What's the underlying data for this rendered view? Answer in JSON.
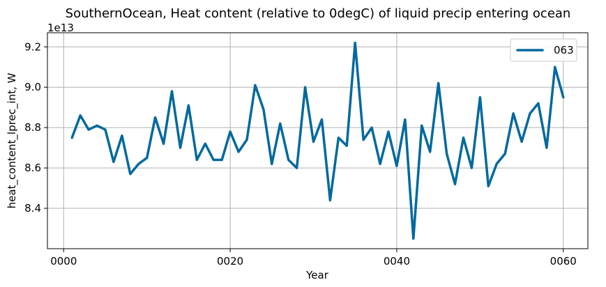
{
  "chart_data": {
    "type": "line",
    "title": "SouthernOcean, Heat content (relative to 0degC) of liquid precip entering ocean",
    "xlabel": "Year",
    "ylabel": "heat_content_lprec_int, W",
    "y_offset_label": "1e13",
    "xlim": [
      -1.95,
      62.95
    ],
    "ylim": [
      8.2,
      9.27
    ],
    "x_ticks": [
      0,
      20,
      40,
      60
    ],
    "x_tick_labels": [
      "0000",
      "0020",
      "0040",
      "0060"
    ],
    "y_ticks": [
      8.4,
      8.6,
      8.8,
      9.0,
      9.2
    ],
    "y_tick_labels": [
      "8.4",
      "8.6",
      "8.8",
      "9.0",
      "9.2"
    ],
    "grid": true,
    "legend_position": "top-right",
    "series": [
      {
        "name": "063",
        "color": "#00699e",
        "x": [
          1,
          2,
          3,
          4,
          5,
          6,
          7,
          8,
          9,
          10,
          11,
          12,
          13,
          14,
          15,
          16,
          17,
          18,
          19,
          20,
          21,
          22,
          23,
          24,
          25,
          26,
          27,
          28,
          29,
          30,
          31,
          32,
          33,
          34,
          35,
          36,
          37,
          38,
          39,
          40,
          41,
          42,
          43,
          44,
          45,
          46,
          47,
          48,
          49,
          50,
          51,
          52,
          53,
          54,
          55,
          56,
          57,
          58,
          59,
          60
        ],
        "values": [
          8.75,
          8.86,
          8.79,
          8.81,
          8.79,
          8.63,
          8.76,
          8.57,
          8.62,
          8.65,
          8.85,
          8.72,
          8.98,
          8.7,
          8.91,
          8.64,
          8.72,
          8.64,
          8.64,
          8.78,
          8.68,
          8.74,
          9.01,
          8.89,
          8.62,
          8.82,
          8.64,
          8.6,
          9.0,
          8.73,
          8.84,
          8.44,
          8.75,
          8.71,
          9.22,
          8.74,
          8.8,
          8.62,
          8.78,
          8.61,
          8.84,
          8.25,
          8.81,
          8.68,
          9.02,
          8.67,
          8.52,
          8.75,
          8.6,
          8.95,
          8.51,
          8.62,
          8.67,
          8.87,
          8.73,
          8.87,
          8.92,
          8.7,
          9.1,
          8.95
        ]
      }
    ]
  }
}
